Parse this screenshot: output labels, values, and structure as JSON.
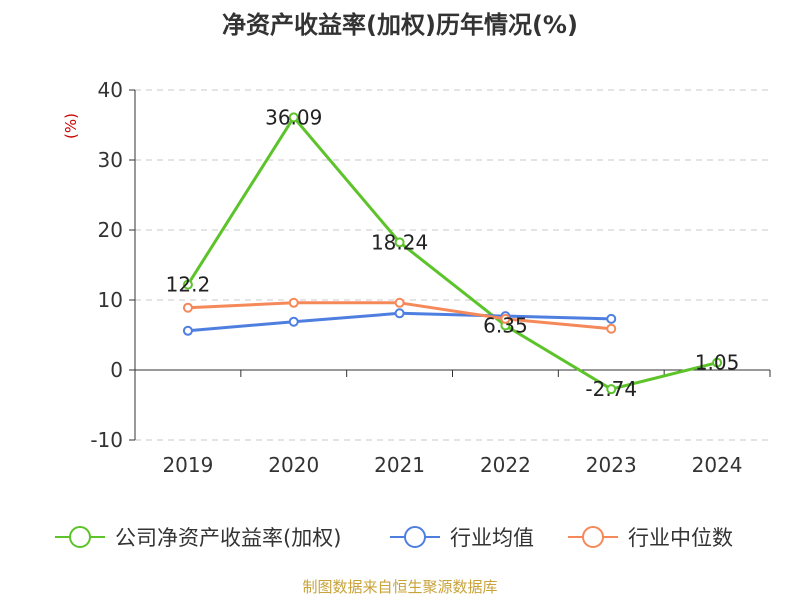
{
  "chart_data": {
    "type": "line",
    "title": "净资产收益率(加权)历年情况(%)",
    "ylabel": "(%)",
    "xlabel": "",
    "categories": [
      "2019",
      "2020",
      "2021",
      "2022",
      "2023",
      "2024"
    ],
    "ylim": [
      -10,
      40
    ],
    "yticks": [
      40,
      30,
      20,
      10,
      0,
      -10
    ],
    "grid": true,
    "legend_position": "bottom",
    "series": [
      {
        "name": "公司净资产收益率(加权)",
        "color": "#5cc42a",
        "values": [
          12.2,
          36.09,
          18.24,
          6.35,
          -2.74,
          1.05
        ],
        "labels": [
          "12.2",
          "36.09",
          "18.24",
          "6.35",
          "-2.74",
          "1.05"
        ]
      },
      {
        "name": "行业均值",
        "color": "#4e7fe0",
        "values": [
          5.6,
          6.9,
          8.1,
          7.7,
          7.3,
          null
        ]
      },
      {
        "name": "行业中位数",
        "color": "#f5895a",
        "values": [
          8.9,
          9.6,
          9.6,
          7.3,
          5.9,
          null
        ]
      }
    ]
  },
  "source": "制图数据来自恒生聚源数据库"
}
